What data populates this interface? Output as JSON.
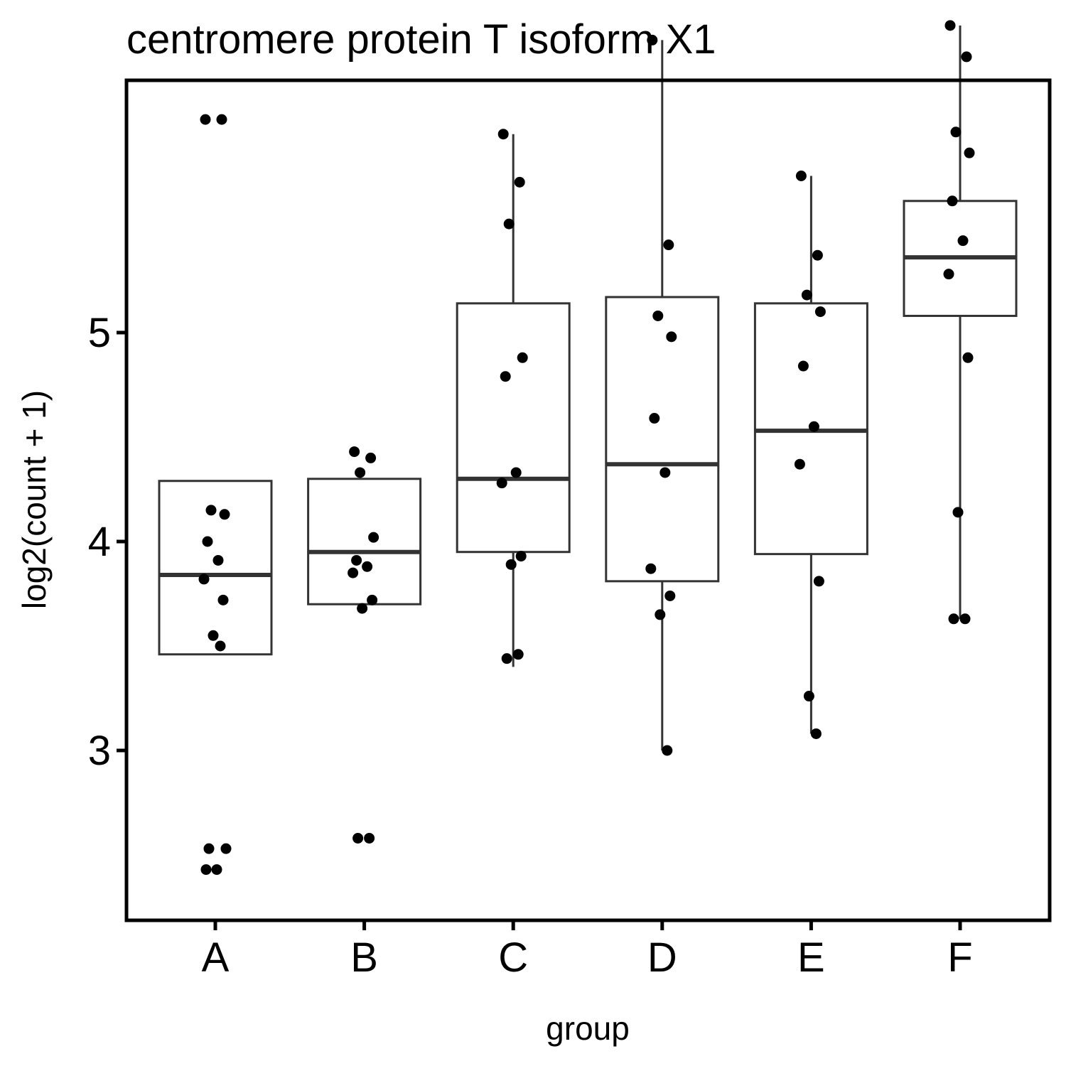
{
  "chart_data": {
    "type": "box",
    "title": "centromere protein T isoform X1",
    "xlabel": "group",
    "ylabel": "log2(count + 1)",
    "categories": [
      "A",
      "B",
      "C",
      "D",
      "E",
      "F"
    ],
    "yticks": [
      3,
      4,
      5
    ],
    "ylim": [
      2.08,
      6.45
    ],
    "grid": false,
    "legend": "none",
    "boxes": [
      {
        "category": "A",
        "q1": 3.46,
        "median": 3.84,
        "q3": 4.29,
        "whisker_low": 3.46,
        "whisker_high": 4.29
      },
      {
        "category": "B",
        "q1": 3.7,
        "median": 3.95,
        "q3": 4.3,
        "whisker_low": 3.7,
        "whisker_high": 4.3
      },
      {
        "category": "C",
        "q1": 3.95,
        "median": 4.3,
        "q3": 5.14,
        "whisker_low": 3.4,
        "whisker_high": 5.95
      },
      {
        "category": "D",
        "q1": 3.81,
        "median": 4.37,
        "q3": 5.17,
        "whisker_low": 3.0,
        "whisker_high": 6.4
      },
      {
        "category": "E",
        "q1": 3.94,
        "median": 4.53,
        "q3": 5.14,
        "whisker_low": 3.08,
        "whisker_high": 5.75
      },
      {
        "category": "F",
        "q1": 5.08,
        "median": 5.36,
        "q3": 5.63,
        "whisker_low": 3.63,
        "whisker_high": 6.47
      }
    ],
    "points": [
      {
        "category": "A",
        "values": [
          6.02,
          6.02,
          4.15,
          4.13,
          4.0,
          3.91,
          3.82,
          3.72,
          3.55,
          3.5,
          2.53,
          2.53,
          2.43,
          2.43
        ]
      },
      {
        "category": "B",
        "values": [
          4.43,
          4.4,
          4.33,
          4.02,
          3.91,
          3.88,
          3.85,
          3.72,
          3.68,
          2.58,
          2.58
        ]
      },
      {
        "category": "C",
        "values": [
          5.95,
          5.72,
          5.52,
          4.88,
          4.79,
          4.33,
          4.28,
          3.93,
          3.89,
          3.46,
          3.44
        ]
      },
      {
        "category": "D",
        "values": [
          6.4,
          5.42,
          5.08,
          4.98,
          4.59,
          4.33,
          3.87,
          3.74,
          3.65,
          3.0
        ]
      },
      {
        "category": "E",
        "values": [
          5.75,
          5.37,
          5.18,
          5.1,
          4.84,
          4.55,
          4.37,
          3.81,
          3.26,
          3.08
        ]
      },
      {
        "category": "F",
        "values": [
          6.47,
          6.32,
          5.96,
          5.86,
          5.63,
          5.44,
          5.28,
          4.88,
          4.14,
          3.63,
          3.63
        ]
      }
    ],
    "colors": {
      "box_stroke": "#333333",
      "box_fill": "#ffffff",
      "point": "#000000",
      "frame": "#000000"
    }
  }
}
